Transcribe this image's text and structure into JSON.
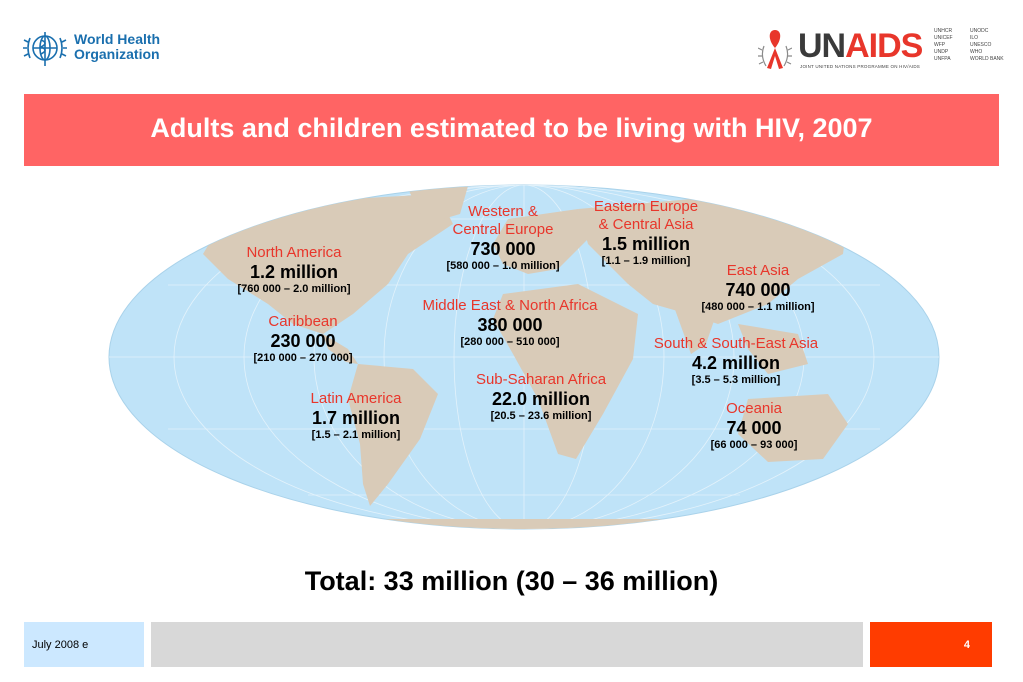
{
  "logos": {
    "who": {
      "line1": "World Health",
      "line2": "Organization"
    },
    "unaids": {
      "wordmark_un": "UN",
      "wordmark_aids": "AIDS",
      "subtitle": "JOINT UNITED NATIONS PROGRAMME ON HIV/AIDS",
      "cosponsors": [
        "UNHCR",
        "UNODC",
        "UNICEF",
        "ILO",
        "WFP",
        "UNESCO",
        "UNDP",
        "WHO",
        "UNFPA",
        "WORLD BANK"
      ]
    }
  },
  "title": "Adults and children estimated to be living with HIV, 2007",
  "regions": [
    {
      "name": "North America",
      "value": "1.2 million",
      "range": "[760 000 – 2.0 million]"
    },
    {
      "name": "Caribbean",
      "value": "230 000",
      "range": "[210 000 – 270 000]"
    },
    {
      "name": "Latin America",
      "value": "1.7 million",
      "range": "[1.5 – 2.1 million]"
    },
    {
      "name": "Western &",
      "name2": "Central Europe",
      "value": "730 000",
      "range": "[580 000 – 1.0 million]"
    },
    {
      "name": "Middle East & North Africa",
      "value": "380 000",
      "range": "[280 000 – 510 000]"
    },
    {
      "name": "Sub-Saharan Africa",
      "value": "22.0 million",
      "range": "[20.5 – 23.6 million]"
    },
    {
      "name": "Eastern Europe",
      "name2": "& Central Asia",
      "value": "1.5 million",
      "range": "[1.1 – 1.9 million]"
    },
    {
      "name": "East Asia",
      "value": "740 000",
      "range": "[480 000 – 1.1 million]"
    },
    {
      "name": "South & South-East Asia",
      "value": "4.2 million",
      "range": "[3.5 – 5.3 million]"
    },
    {
      "name": "Oceania",
      "value": "74 000",
      "range": "[66 000 – 93 000]"
    }
  ],
  "total": "Total: 33 million (30 – 36 million)",
  "footer": {
    "date": "July 2008  e",
    "page": "4"
  },
  "colors": {
    "banner": "#ff6464",
    "region_name": "#e8362b",
    "ocean": "#bfe3f8",
    "land": "#d9cbb8",
    "footer_date_bg": "#cce8ff",
    "footer_page_bg": "#ff3c00"
  }
}
